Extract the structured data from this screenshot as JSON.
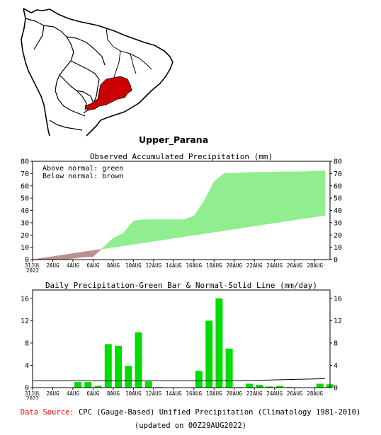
{
  "map": {
    "region_name": "Upper_Parana"
  },
  "footer": {
    "source_label": "Data Source:",
    "source_text": "CPC (Gauge-Based) Unified Precipitation (Climatology 1981-2010)",
    "updated_text": "(updated on 00Z29AUG2022)"
  },
  "colors": {
    "above_normal": "#90ee90",
    "below_normal": "#bc8f8f",
    "daily_bar": "#00dd00",
    "region_fill": "#cc0000",
    "source_label": "#ff0000"
  },
  "chart_data": [
    {
      "type": "area",
      "title": "Observed Accumulated Precipitation (mm)",
      "annotations": [
        "Above normal: green",
        "Below normal: brown"
      ],
      "ylim": [
        0,
        80
      ],
      "yticks": [
        0,
        10,
        20,
        30,
        40,
        50,
        60,
        70,
        80
      ],
      "x_tick_labels": [
        "31JUL",
        "2AUG",
        "4AUG",
        "6AUG",
        "8AUG",
        "10AUG",
        "12AUG",
        "14AUG",
        "16AUG",
        "18AUG",
        "20AUG",
        "22AUG",
        "24AUG",
        "26AUG",
        "28AUG"
      ],
      "x_year_label": "2022",
      "x_days": [
        0,
        2,
        4,
        6,
        8,
        10,
        12,
        14,
        16,
        18,
        20,
        22,
        24,
        26,
        28
      ],
      "x_range": [
        0,
        29.5
      ],
      "series": [
        {
          "name": "Observed",
          "x": [
            0,
            1,
            2,
            3,
            4,
            5,
            6,
            7,
            8,
            9,
            10,
            11,
            12,
            13,
            14,
            15,
            16,
            17,
            18,
            19,
            20,
            21,
            22,
            23,
            24,
            25,
            26,
            27,
            28,
            29
          ],
          "values": [
            0,
            0,
            0,
            0,
            1,
            2,
            2.3,
            10,
            17.5,
            21.5,
            31.5,
            32.5,
            32.5,
            32.5,
            32.5,
            32.5,
            35.5,
            47.5,
            63.5,
            70.2,
            70.4,
            70.8,
            71,
            71.2,
            71.3,
            71.4,
            71.5,
            71.6,
            72,
            72.2
          ]
        },
        {
          "name": "Normal",
          "x": [
            0,
            29
          ],
          "values": [
            0,
            36
          ]
        }
      ]
    },
    {
      "type": "bar",
      "title": "Daily Precipitation-Green Bar & Normal-Solid Line (mm/day)",
      "ylim": [
        0,
        17.5
      ],
      "yticks": [
        0,
        4,
        8,
        12,
        16
      ],
      "x_tick_labels": [
        "31JUL",
        "2AUG",
        "4AUG",
        "6AUG",
        "8AUG",
        "10AUG",
        "12AUG",
        "14AUG",
        "16AUG",
        "18AUG",
        "20AUG",
        "22AUG",
        "24AUG",
        "26AUG",
        "28AUG"
      ],
      "x_year_label": "2022",
      "x_days": [
        0,
        2,
        4,
        6,
        8,
        10,
        12,
        14,
        16,
        18,
        20,
        22,
        24,
        26,
        28
      ],
      "x_range": [
        0,
        29.5
      ],
      "series": [
        {
          "name": "Daily Precipitation",
          "x": [
            0,
            1,
            2,
            3,
            4,
            5,
            6,
            7,
            8,
            9,
            10,
            11,
            12,
            13,
            14,
            15,
            16,
            17,
            18,
            19,
            20,
            21,
            22,
            23,
            24,
            25,
            26,
            27,
            28,
            29
          ],
          "values": [
            0,
            0,
            0,
            0,
            1,
            1,
            0.3,
            7.8,
            7.5,
            3.9,
            9.9,
            1.1,
            0.1,
            0,
            0,
            0,
            3,
            12,
            16,
            7,
            0.1,
            0.7,
            0.5,
            0.2,
            0.3,
            0.1,
            0,
            0,
            0.7,
            0.6
          ]
        },
        {
          "name": "Normal",
          "x": [
            0,
            10,
            20,
            29
          ],
          "values": [
            1.2,
            1.2,
            1.2,
            1.6
          ]
        }
      ]
    }
  ]
}
